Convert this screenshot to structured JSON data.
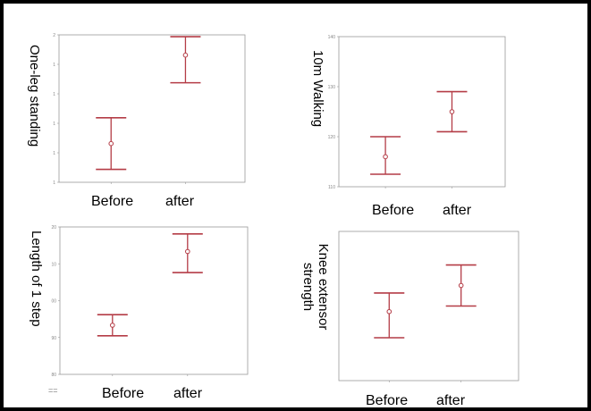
{
  "chart_data": [
    {
      "type": "errorbar",
      "ylabel": "One-leg standing",
      "categories": [
        "Before",
        "after"
      ],
      "series": [
        {
          "values": [
            11.1,
            15.9
          ],
          "lower": [
            9.7,
            14.4
          ],
          "upper": [
            12.5,
            16.9
          ]
        }
      ],
      "ylim": [
        9,
        17
      ],
      "yticks": [
        "2",
        "1",
        "1",
        "1",
        "1",
        "1"
      ],
      "grid": false
    },
    {
      "type": "errorbar",
      "ylabel": "10m Walking",
      "categories": [
        "Before",
        "after"
      ],
      "series": [
        {
          "values": [
            116,
            125
          ],
          "lower": [
            112.5,
            121
          ],
          "upper": [
            120,
            129
          ]
        }
      ],
      "ylim": [
        110,
        140
      ],
      "yticks": [
        "140",
        "130",
        "120",
        "110"
      ],
      "grid": false
    },
    {
      "type": "errorbar",
      "ylabel": "Length of 1 step",
      "categories": [
        "Before",
        "after"
      ],
      "series": [
        {
          "values": [
            82,
            92.5
          ],
          "lower": [
            80.5,
            89.5
          ],
          "upper": [
            83.5,
            95
          ]
        }
      ],
      "ylim": [
        75,
        96
      ],
      "yticks": [
        "20",
        "10",
        "00",
        "90",
        "80"
      ],
      "grid": false,
      "corner_label": "=="
    },
    {
      "type": "errorbar",
      "ylabel": "Knee extensor strength",
      "categories": [
        "Before",
        "after"
      ],
      "series": [
        {
          "values": [
            52,
            66
          ],
          "lower": [
            38,
            55
          ],
          "upper": [
            62,
            77
          ]
        }
      ],
      "ylim": [
        15,
        95
      ],
      "yticks": [],
      "grid": false
    }
  ]
}
